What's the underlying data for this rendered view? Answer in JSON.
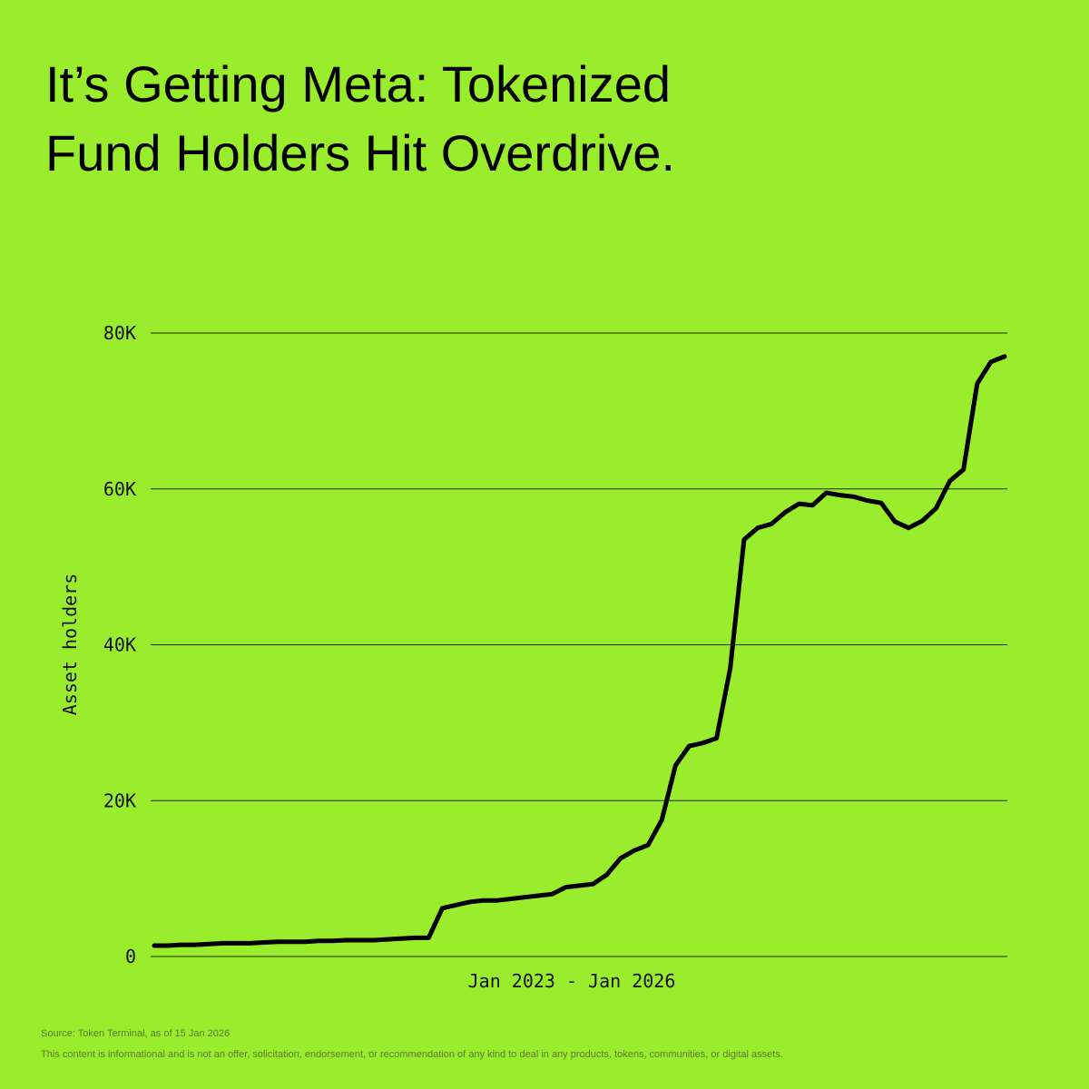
{
  "chart_data": {
    "type": "line",
    "title_lines": [
      "It’s Getting Meta: Tokenized",
      "Fund Holders Hit Overdrive."
    ],
    "y_label": "Asset holders",
    "x_label": "Jan 2023 - Jan 2026",
    "source": "Source: Token Terminal, as of 15 Jan 2026",
    "disclaimer": "This content is informational and is not an offer, solicitation, endorsement, or recommendation of any kind to deal in any products, tokens, communities, or digital assets.",
    "color": "#000000",
    "grid": true,
    "ylim": [
      0,
      80000
    ],
    "yticks": [
      0,
      {
        "value": 20000,
        "label": "20K"
      },
      {
        "value": 40000,
        "label": "40K"
      },
      {
        "value": 60000,
        "label": "60K"
      },
      {
        "value": 80000,
        "label": "80K"
      }
    ],
    "values": [
      1400,
      1400,
      1500,
      1500,
      1600,
      1700,
      1700,
      1700,
      1800,
      1900,
      1900,
      1900,
      2000,
      2000,
      2100,
      2100,
      2100,
      2200,
      2300,
      2400,
      2400,
      6200,
      6600,
      7000,
      7200,
      7200,
      7400,
      7600,
      7800,
      8000,
      8900,
      9100,
      9300,
      10500,
      12600,
      13600,
      14300,
      17500,
      24500,
      27000,
      27400,
      28000,
      37000,
      53500,
      55000,
      55500,
      57000,
      58100,
      57900,
      59500,
      59200,
      59000,
      58500,
      58200,
      55800,
      55000,
      55900,
      57500,
      61000,
      62500,
      73500,
      76300,
      77000
    ]
  }
}
